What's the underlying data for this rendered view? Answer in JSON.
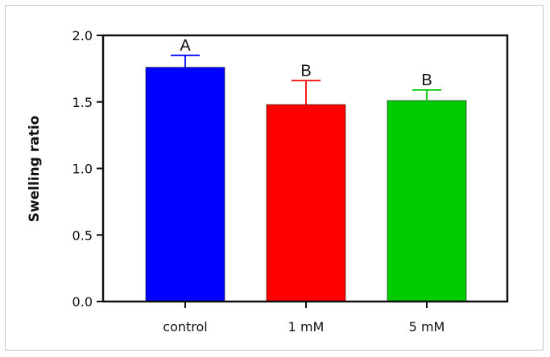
{
  "chart_data": {
    "type": "bar",
    "title": "",
    "xlabel": "",
    "ylabel": "Swelling ratio",
    "ylim": [
      0,
      2.0
    ],
    "yticks": [
      "0.0",
      "0.5",
      "1.0",
      "1.5",
      "2.0"
    ],
    "categories": [
      "control",
      "1 mM",
      "5 mM"
    ],
    "values": [
      1.76,
      1.48,
      1.51
    ],
    "errors": [
      0.09,
      0.18,
      0.08
    ],
    "significance": [
      "A",
      "B",
      "B"
    ],
    "colors": [
      "#0000ff",
      "#ff0000",
      "#00cc00"
    ],
    "grid": false
  }
}
